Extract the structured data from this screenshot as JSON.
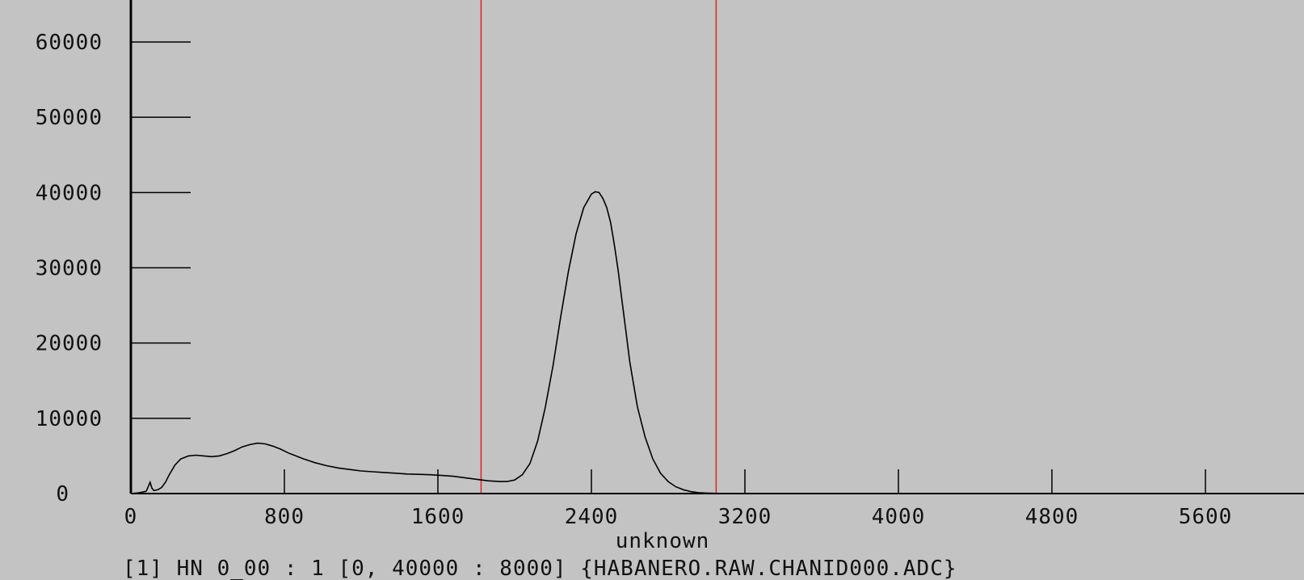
{
  "colors": {
    "background": "#c3c3c3",
    "axis": "#000000",
    "trace": "#000000",
    "markers": "#e02020"
  },
  "caption": "[1] HN 0_00 : 1 [0, 40000 : 8000] {HABANERO.RAW.CHANID000.ADC}",
  "chart_data": {
    "type": "line",
    "title": "",
    "xlabel": "unknown",
    "ylabel": "",
    "xlim": [
      0,
      6200
    ],
    "ylim": [
      0,
      65000
    ],
    "x_ticks": [
      0,
      800,
      1600,
      2400,
      3200,
      4000,
      4800,
      5600
    ],
    "y_ticks": [
      0,
      10000,
      20000,
      30000,
      40000,
      50000,
      60000
    ],
    "grid": false,
    "legend": "none",
    "vertical_markers": [
      1825,
      3050
    ],
    "series": [
      {
        "x": [
          0,
          40,
          80,
          100,
          110,
          120,
          140,
          160,
          180,
          200,
          230,
          260,
          300,
          340,
          380,
          420,
          460,
          500,
          540,
          580,
          620,
          660,
          700,
          740,
          780,
          820,
          860,
          900,
          960,
          1020,
          1080,
          1140,
          1200,
          1260,
          1320,
          1380,
          1440,
          1500,
          1560,
          1620,
          1680,
          1740,
          1800,
          1860,
          1920,
          1960,
          2000,
          2040,
          2080,
          2120,
          2160,
          2200,
          2240,
          2280,
          2320,
          2360,
          2400,
          2420,
          2440,
          2460,
          2480,
          2500,
          2520,
          2540,
          2560,
          2580,
          2600,
          2640,
          2680,
          2720,
          2760,
          2800,
          2840,
          2880,
          2920,
          2960,
          3000,
          3040,
          3080,
          3120,
          3200,
          3400,
          3800,
          4400,
          5200,
          6200
        ],
        "y": [
          0,
          100,
          300,
          1500,
          700,
          400,
          500,
          800,
          1500,
          2500,
          3800,
          4600,
          5000,
          5100,
          5000,
          4900,
          5000,
          5300,
          5700,
          6200,
          6500,
          6700,
          6600,
          6300,
          5900,
          5400,
          5000,
          4600,
          4100,
          3700,
          3400,
          3200,
          3000,
          2900,
          2800,
          2700,
          2600,
          2550,
          2500,
          2400,
          2300,
          2100,
          1900,
          1700,
          1600,
          1600,
          1800,
          2500,
          4000,
          7000,
          11500,
          17000,
          23500,
          29500,
          34500,
          38000,
          39800,
          40100,
          40000,
          39200,
          38000,
          36000,
          33000,
          29500,
          25500,
          21500,
          17500,
          11500,
          7500,
          4600,
          2700,
          1600,
          900,
          500,
          250,
          120,
          60,
          30,
          15,
          5,
          0,
          0,
          0,
          0,
          0,
          0
        ]
      }
    ]
  }
}
